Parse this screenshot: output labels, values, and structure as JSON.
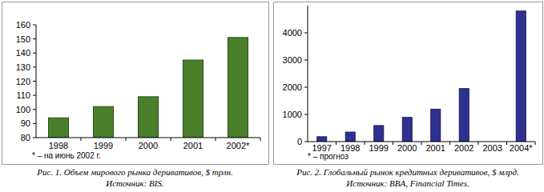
{
  "chart_data": [
    {
      "type": "bar",
      "title": "Рис. 1. Объем мирового рынка деривативов, $ трлн.",
      "subtitle": "Источник: BIS.",
      "annotations": [
        "* – на июнь 2002 г."
      ],
      "categories": [
        "1998",
        "1999",
        "2000",
        "2001",
        "2002*"
      ],
      "values": [
        94,
        102,
        109,
        135,
        151
      ],
      "color": "#4a7f2c",
      "ylim": [
        80,
        160
      ],
      "yticks": [
        80,
        90,
        100,
        110,
        120,
        130,
        140,
        150,
        160
      ],
      "grid": false
    },
    {
      "type": "bar",
      "title": "Рис. 2. Глобальный рынок кредитных деривативов, $ млрд.",
      "subtitle": "Источник: BBA, Financial Times.",
      "annotations": [
        "* – прогноз"
      ],
      "categories": [
        "1997",
        "1998",
        "1999",
        "2000",
        "2001",
        "2002",
        "2003",
        "2004*"
      ],
      "values": [
        180,
        350,
        590,
        890,
        1190,
        1950,
        null,
        4800
      ],
      "color": "#2e3192",
      "ylim": [
        0,
        5000
      ],
      "yticks": [
        0,
        1000,
        2000,
        3000,
        4000
      ],
      "grid": false
    }
  ]
}
